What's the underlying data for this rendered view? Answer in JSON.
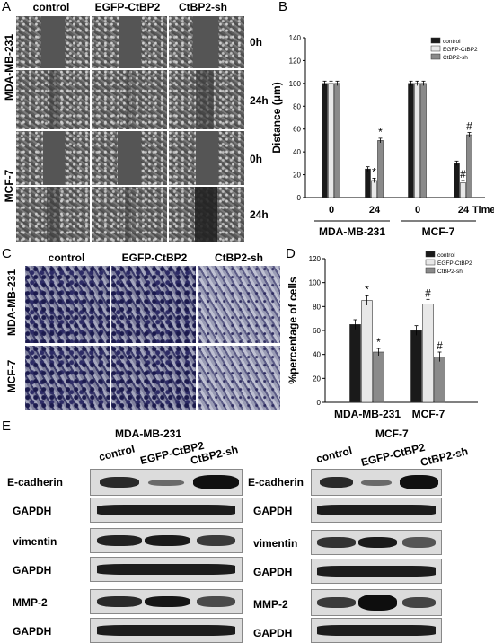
{
  "panels": {
    "a": "A",
    "b": "B",
    "c": "C",
    "d": "D",
    "e": "E"
  },
  "panel_a": {
    "columns": [
      "control",
      "EGFP-CtBP2",
      "CtBP2-sh"
    ],
    "times": [
      "0h",
      "24h",
      "0h",
      "24h"
    ],
    "cell_lines": [
      "MDA-MB-231",
      "MCF-7"
    ]
  },
  "panel_c": {
    "columns": [
      "control",
      "EGFP-CtBP2",
      "CtBP2-sh"
    ],
    "cell_lines": [
      "MDA-MB-231",
      "MCF-7"
    ]
  },
  "panel_e": {
    "groups": [
      {
        "title": "MDA-MB-231",
        "columns": [
          "control",
          "EGFP-CtBP2",
          "CtBP2-sh"
        ],
        "rows": [
          "E-cadherin",
          "GAPDH",
          "vimentin",
          "GAPDH",
          "MMP-2",
          "GAPDH"
        ]
      },
      {
        "title": "MCF-7",
        "columns": [
          "control",
          "EGFP-CtBP2",
          "CtBP2-sh"
        ],
        "rows": [
          "E-cadherin",
          "GAPDH",
          "vimentin",
          "GAPDH",
          "MMP-2",
          "GAPDH"
        ]
      }
    ]
  },
  "chart_data": [
    {
      "type": "bar",
      "ylabel": "Distance (μm)",
      "ylim": [
        0,
        140
      ],
      "yticks": [
        0,
        20,
        40,
        60,
        80,
        100,
        120,
        140
      ],
      "xtick_labels": [
        "0",
        "24",
        "0",
        "24"
      ],
      "x_time_label": "Time(h)",
      "groups": [
        "MDA-MB-231",
        "MCF-7"
      ],
      "legend": [
        "control",
        "EGFP-CtBP2",
        "CtBP2-sh"
      ],
      "legend_position": "top-right",
      "series": [
        {
          "name": "control",
          "values": [
            100,
            25,
            100,
            30
          ],
          "errors": [
            2,
            2,
            2,
            2
          ]
        },
        {
          "name": "EGFP-CtBP2",
          "values": [
            100,
            15,
            100,
            13
          ],
          "errors": [
            2,
            2,
            2,
            2
          ]
        },
        {
          "name": "CtBP2-sh",
          "values": [
            100,
            50,
            100,
            55
          ],
          "errors": [
            2,
            2,
            2,
            2
          ]
        }
      ],
      "annotations": [
        {
          "series": 1,
          "point": 1,
          "text": "*"
        },
        {
          "series": 2,
          "point": 1,
          "text": "*"
        },
        {
          "series": 1,
          "point": 3,
          "text": "#"
        },
        {
          "series": 2,
          "point": 3,
          "text": "#"
        }
      ],
      "colors": [
        "#1a1a1a",
        "#e8e8e8",
        "#8a8a8a"
      ]
    },
    {
      "type": "bar",
      "ylabel": "%percentage of cells",
      "ylim": [
        0,
        120
      ],
      "yticks": [
        0,
        20,
        40,
        60,
        80,
        100,
        120
      ],
      "categories": [
        "MDA-MB-231",
        "MCF-7"
      ],
      "legend": [
        "control",
        "EGFP-CtBP2",
        "CtBP2-sh"
      ],
      "legend_position": "top-right",
      "series": [
        {
          "name": "control",
          "values": [
            65,
            60
          ],
          "errors": [
            4,
            4
          ]
        },
        {
          "name": "EGFP-CtBP2",
          "values": [
            85,
            82
          ],
          "errors": [
            4,
            4
          ]
        },
        {
          "name": "CtBP2-sh",
          "values": [
            42,
            38
          ],
          "errors": [
            3,
            4
          ]
        }
      ],
      "annotations": [
        {
          "series": 1,
          "point": 0,
          "text": "*"
        },
        {
          "series": 2,
          "point": 0,
          "text": "*"
        },
        {
          "series": 1,
          "point": 1,
          "text": "#"
        },
        {
          "series": 2,
          "point": 1,
          "text": "#"
        }
      ],
      "colors": [
        "#1a1a1a",
        "#e8e8e8",
        "#8a8a8a"
      ]
    }
  ]
}
